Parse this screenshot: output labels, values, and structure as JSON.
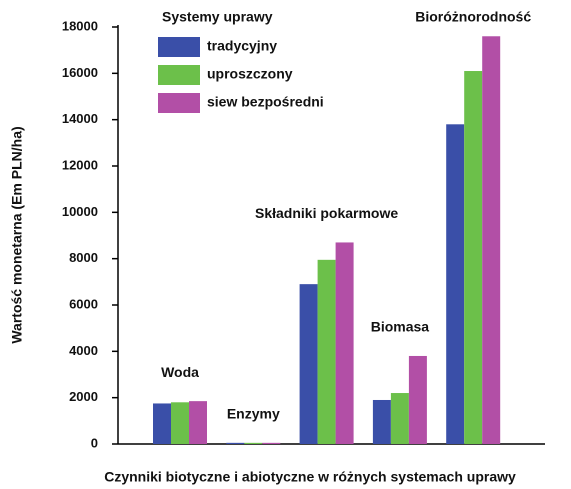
{
  "chart_data": {
    "type": "bar",
    "y_label": "Wartość monetarna (Em PLN/ha)",
    "x_label": "Czynniki biotyczne i abiotyczne w różnych systemach uprawy",
    "legend_title": "Systemy uprawy",
    "categories": [
      "Woda",
      "Enzymy",
      "Składniki pokarmowe",
      "Biomasa",
      "Bioróżnorodność"
    ],
    "series": [
      {
        "name": "tradycyjny",
        "color": "#3a4fa8",
        "values": [
          1750,
          50,
          6900,
          1900,
          13800
        ]
      },
      {
        "name": "uproszczony",
        "color": "#6cc04a",
        "values": [
          1800,
          50,
          7950,
          2200,
          16100
        ]
      },
      {
        "name": "siew bezpośredni",
        "color": "#b24fa6",
        "values": [
          1850,
          50,
          8700,
          3800,
          17600
        ]
      }
    ],
    "ylim": [
      0,
      18000
    ],
    "yticks": [
      0,
      2000,
      4000,
      6000,
      8000,
      10000,
      12000,
      14000,
      16000,
      18000
    ]
  }
}
